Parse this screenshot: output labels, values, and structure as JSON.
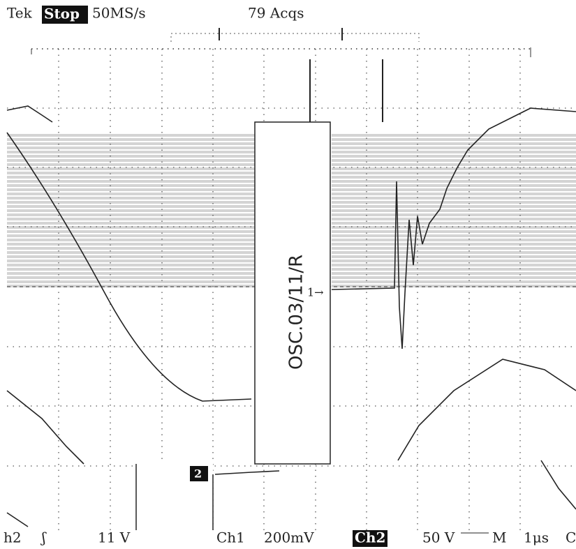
{
  "header": {
    "brand": "Tek",
    "state": "Stop",
    "sample_rate": "50MS/s",
    "acquisitions": "79 Acqs"
  },
  "annotation": "OSC.03/11/R",
  "markers": {
    "ch1": "1→",
    "ch2": "2"
  },
  "footer": {
    "trigger_source": "h2",
    "trigger_slope": "ʃ",
    "trigger_level": "11 V",
    "ch1_label": "Ch1",
    "ch1_scale": "200mV",
    "ch2_label": "Ch2",
    "ch2_scale": "50 V",
    "timebase_label": "M",
    "timebase": "1μs",
    "coupling": "C"
  }
}
